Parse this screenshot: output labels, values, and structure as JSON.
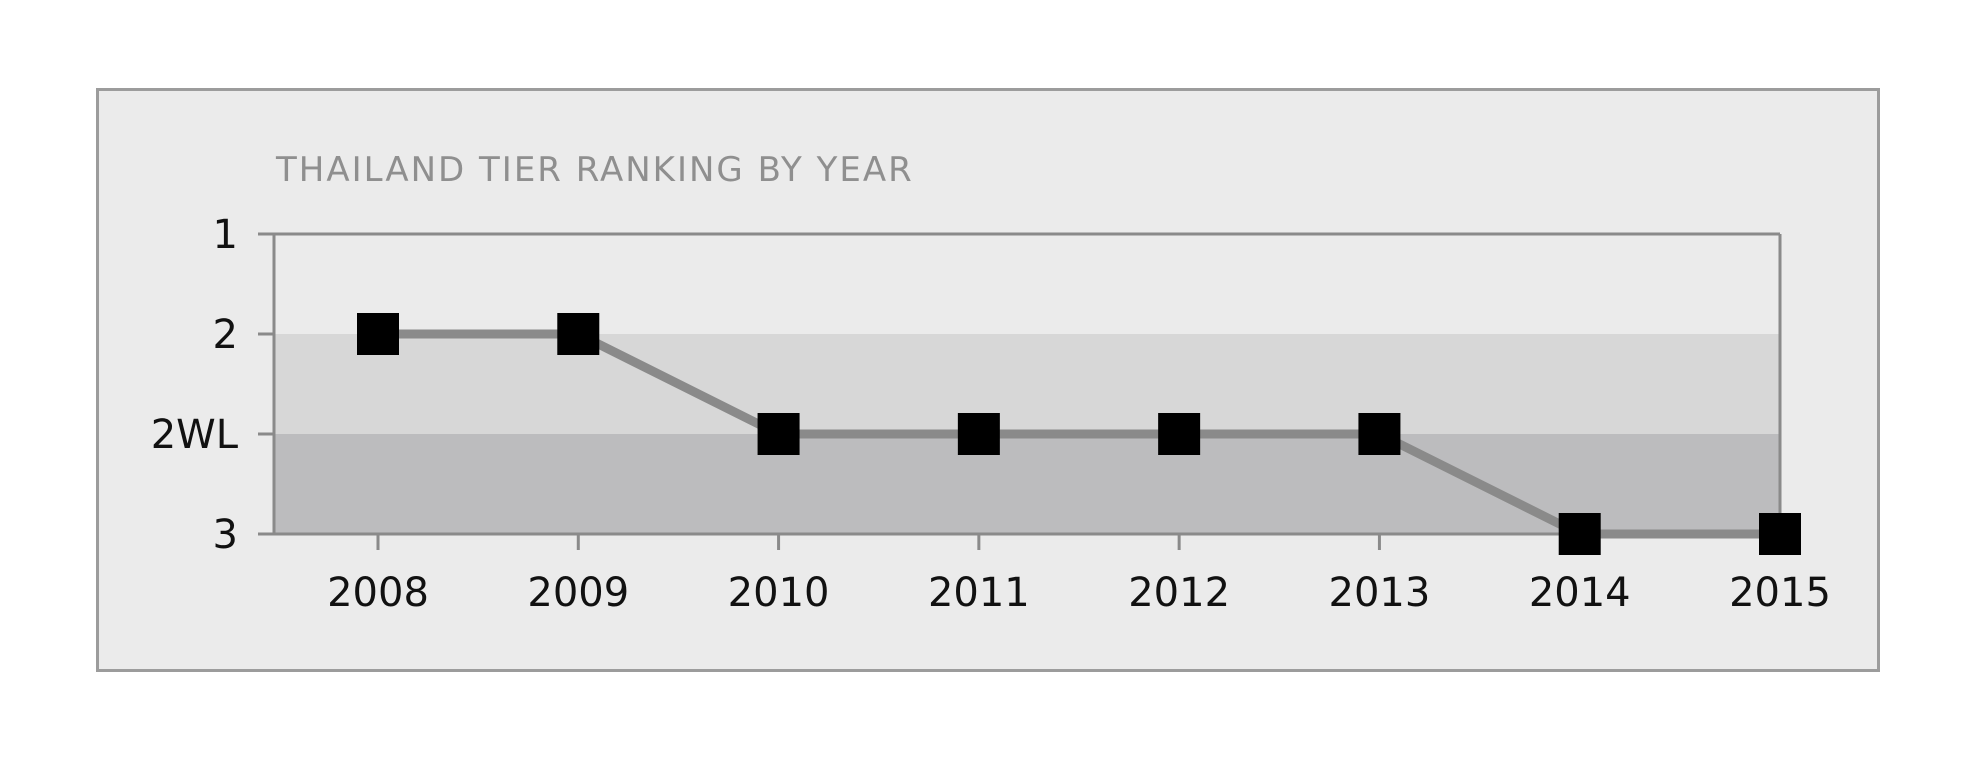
{
  "chart_data": {
    "type": "line",
    "title": "THAILAND TIER RANKING BY YEAR",
    "xlabel": "",
    "ylabel": "",
    "x": [
      "2008",
      "2009",
      "2010",
      "2011",
      "2012",
      "2013",
      "2014",
      "2015"
    ],
    "y_categories": [
      "1",
      "2",
      "2WL",
      "3"
    ],
    "series": [
      {
        "values": [
          "2",
          "2",
          "2WL",
          "2WL",
          "2WL",
          "2WL",
          "3",
          "3"
        ]
      }
    ],
    "bands": [
      {
        "from": "2",
        "to": "2WL",
        "color": "#d7d7d7"
      },
      {
        "from": "2WL",
        "to": "3",
        "color": "#bcbcbe"
      }
    ],
    "colors": {
      "frame_bg": "#ebebeb",
      "plot_bg": "#ebebeb",
      "axis": "#8a8a8a",
      "line": "#8a8a8a",
      "marker": "#000000",
      "title": "#8f8f8f",
      "tick_label": "#111111"
    },
    "grid": false,
    "legend": "none"
  }
}
